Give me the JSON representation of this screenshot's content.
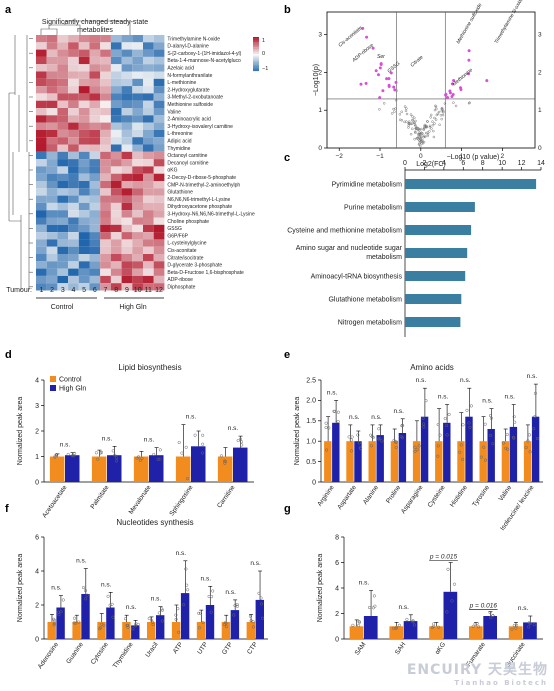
{
  "panels": {
    "a": "a",
    "b": "b",
    "c": "c",
    "d": "d",
    "e": "e",
    "f": "f",
    "g": "g"
  },
  "heatmap": {
    "title_line1": "Significantly changed steady-state",
    "title_line2": "metabolites",
    "tumour_label": "Tumour:",
    "tumours": [
      "1",
      "2",
      "3",
      "4",
      "5",
      "6",
      "7",
      "8",
      "9",
      "10",
      "11",
      "12"
    ],
    "group_control": "Control",
    "group_highgln": "High Gln",
    "colorbar_ticks": [
      "1",
      "0",
      "−1"
    ],
    "metabolites": [
      "Trimethylamine N-oxide",
      "D-alanyl-D-alanine",
      "S-[2-carboxy-1-(1H-imidazol-4-yl)",
      "Beta-1-4-mannose-N-acetylgluco",
      "Azelaic acid",
      "N-formylanthranilate",
      "L-methionine",
      "2-Hydroxyglutarate",
      "3-Methyl-2-oxobutanoate",
      "Methionine sulfoxide",
      "Valine",
      "2-Aminoacrylic acid",
      "3-Hydroxy-isovaleryl carnitine",
      "L-threonine",
      "Adipic acid",
      "Thymidine",
      "Octanoyl carnitine",
      "Decanoyl carnitine",
      "αKG",
      "2-Decoy-D-ribose-5-phosphate",
      "CMP-N-trimethyl-2-aminoethylph",
      "Glutathione",
      "N6,N6,N6-trimethyl-L-Lysine",
      "Dihydroxyacetone phosphate",
      "3-Hydroxy-N6,N6,N6-trimethyl-L-Lysine",
      "Choline phosphate",
      "GSSG",
      "G6P/F6P",
      "L-cysteinylglycine",
      "Cis-aconitate",
      "Citrate/isocitrate",
      "D-glycerate 3-phosphate",
      "Beta-D-Fructose 1,6-bisphosphate",
      "ADP-ribose",
      "Diphosphate"
    ],
    "colors": {
      "high": "#b2182b",
      "low": "#2166ac",
      "mid": "#f7f7f7"
    }
  },
  "volcano": {
    "ylabel": "−Log10(p)",
    "xlabel": "Log2(FC)",
    "x_ticks": [
      "−2",
      "−1",
      "0",
      "1",
      "2"
    ],
    "y_ticks": [
      "0",
      "1",
      "2",
      "3"
    ],
    "y_ticks_right": [
      "0",
      "1",
      "2",
      "3"
    ],
    "labels_left": [
      "Cis-aconitate",
      "ADP-ribose",
      "Ser",
      "GSSG",
      "Citrate"
    ],
    "labels_right": [
      "Methionine sulfoxide",
      "Trimethylamine N-oxide",
      "Methionine"
    ]
  },
  "pathway": {
    "xlabel": "−Log10 (p value)",
    "x_ticks": [
      "0",
      "2",
      "4",
      "6",
      "8",
      "10",
      "12",
      "14"
    ],
    "bar_color": "#3a7ea1",
    "items": [
      "Pyrimidine metabolism",
      "Purine metabolism",
      "Cysteine and methionine metabolism",
      "Amino sugar and nucleotide sugar metabolism",
      "Aminoacyl-tRNA biosynthesis",
      "Glutathione metabolism",
      "Nitrogen metabolism"
    ]
  },
  "legend": {
    "control": "Control",
    "highgln": "High Gln"
  },
  "colors": {
    "control": "#f28c1e",
    "highgln": "#1f22a8"
  },
  "ylabel": "Normalized peak area",
  "ns": "n.s.",
  "chart_data": [
    {
      "type": "bar",
      "orientation": "horizontal",
      "panel": "c",
      "categories": [
        "Pyrimidine metabolism",
        "Purine metabolism",
        "Cysteine and methionine metabolism",
        "Amino sugar and nucleotide sugar metabolism",
        "Aminoacyl-tRNA biosynthesis",
        "Glutathione metabolism",
        "Nitrogen metabolism"
      ],
      "values": [
        13.5,
        7.2,
        6.8,
        6.4,
        6.2,
        5.8,
        5.7
      ],
      "xlim": [
        0,
        14
      ]
    },
    {
      "type": "bar",
      "panel": "d",
      "title": "Lipid biosynthesis",
      "categories": [
        "Acetoacetate",
        "Palmitate",
        "Mevalonate",
        "Sphingosine",
        "Carnitine"
      ],
      "series": [
        {
          "name": "Control",
          "values": [
            1.0,
            1.0,
            1.0,
            1.0,
            1.0
          ],
          "err": [
            0.1,
            0.25,
            0.2,
            1.25,
            0.35
          ]
        },
        {
          "name": "High Gln",
          "values": [
            1.05,
            1.05,
            1.05,
            1.4,
            1.35
          ],
          "err": [
            0.1,
            0.35,
            0.3,
            0.6,
            0.45
          ]
        }
      ],
      "annotations": [
        "n.s.",
        "n.s.",
        "n.s.",
        "n.s.",
        "n.s."
      ],
      "ylim": [
        0,
        4
      ],
      "y_ticks": [
        "0",
        "1",
        "2",
        "3",
        "4"
      ]
    },
    {
      "type": "bar",
      "panel": "e",
      "title": "Amino acids",
      "categories": [
        "Arginine",
        "Aspartate",
        "Alanine",
        "Proline",
        "Asparagine",
        "Cysteine",
        "Histidine",
        "Tyrosine",
        "Valine",
        "Isoleucine/ leucine"
      ],
      "series": [
        {
          "name": "Control",
          "values": [
            1.0,
            1.0,
            1.0,
            1.0,
            1.0,
            1.0,
            1.0,
            1.0,
            1.0,
            1.0
          ],
          "err": [
            0.6,
            0.4,
            0.4,
            0.3,
            0.5,
            0.8,
            0.7,
            0.6,
            0.3,
            0.4
          ]
        },
        {
          "name": "High Gln",
          "values": [
            1.45,
            1.0,
            1.15,
            1.2,
            1.6,
            1.45,
            1.6,
            1.3,
            1.35,
            1.6
          ],
          "err": [
            0.55,
            0.25,
            0.25,
            0.35,
            0.7,
            0.45,
            0.7,
            0.5,
            0.55,
            0.8
          ]
        }
      ],
      "annotations": [
        "n.s.",
        "n.s.",
        "n.s.",
        "n.s.",
        "n.s.",
        "n.s.",
        "n.s.",
        "n.s.",
        "n.s.",
        "n.s."
      ],
      "ylim": [
        0,
        2.5
      ],
      "y_ticks": [
        "0",
        "0.5",
        "1.0",
        "1.5",
        "2.0",
        "2.5"
      ]
    },
    {
      "type": "bar",
      "panel": "f",
      "title": "Nucleotides synthesis",
      "categories": [
        "Adenosine",
        "Guanine",
        "Cytosine",
        "Thymidine",
        "Uracil",
        "ATP",
        "UTP",
        "GTP",
        "CTP"
      ],
      "series": [
        {
          "name": "Control",
          "values": [
            1.0,
            1.0,
            1.0,
            1.0,
            1.0,
            1.0,
            1.0,
            1.0,
            1.0
          ],
          "err": [
            0.45,
            0.4,
            0.5,
            0.4,
            0.3,
            1.0,
            0.7,
            0.4,
            0.45
          ]
        },
        {
          "name": "High Gln",
          "values": [
            1.85,
            2.65,
            1.85,
            0.8,
            1.4,
            2.7,
            2.0,
            1.7,
            2.3
          ],
          "err": [
            0.7,
            1.5,
            0.9,
            0.3,
            0.5,
            1.9,
            1.1,
            0.6,
            1.7
          ]
        }
      ],
      "annotations": [
        "n.s.",
        "n.s.",
        "n.s.",
        "n.s.",
        "n.s.",
        "n.s.",
        "n.s.",
        "n.s.",
        "n.s."
      ],
      "ylim": [
        0,
        6
      ],
      "y_ticks": [
        "0",
        "2",
        "4",
        "6"
      ]
    },
    {
      "type": "bar",
      "panel": "g",
      "categories": [
        "SAM",
        "SAH",
        "αKG",
        "Fumarate",
        "Succinate"
      ],
      "series": [
        {
          "name": "Control",
          "values": [
            1.0,
            1.0,
            1.0,
            1.0,
            1.0
          ],
          "err": [
            0.5,
            0.3,
            0.3,
            0.3,
            0.3
          ]
        },
        {
          "name": "High Gln",
          "values": [
            1.8,
            1.4,
            3.7,
            1.8,
            1.3
          ],
          "err": [
            2.0,
            0.5,
            2.3,
            0.35,
            0.5
          ]
        }
      ],
      "annotations": [
        "n.s.",
        "n.s.",
        "p = 0.015",
        "p = 0.016",
        "n.s."
      ],
      "ylim": [
        0,
        8
      ],
      "y_ticks": [
        "0",
        "2",
        "4",
        "6",
        "8"
      ]
    }
  ]
}
